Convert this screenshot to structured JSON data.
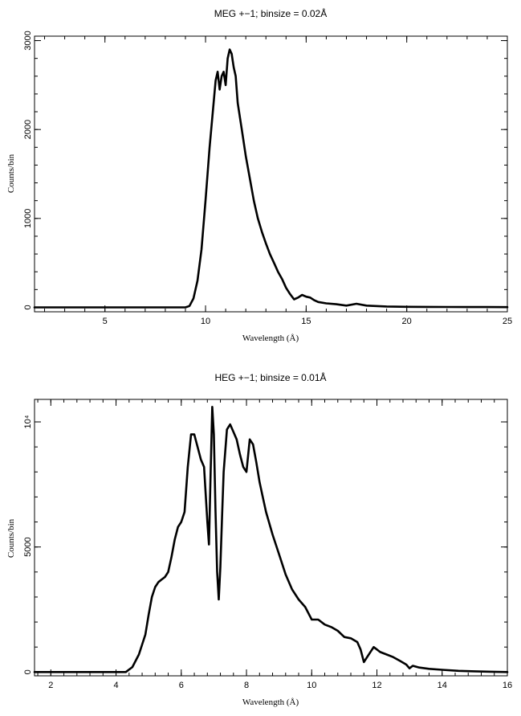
{
  "chart_data": [
    {
      "type": "line",
      "title": "MEG +−1; binsize = 0.02Å",
      "xlabel": "Wavelength (Å)",
      "ylabel": "Counts/bin",
      "xlim": [
        1.5,
        25
      ],
      "ylim": [
        -50,
        3050
      ],
      "xticks": [
        5,
        10,
        15,
        20,
        25
      ],
      "xtick_labels": [
        "5",
        "10",
        "15",
        "20",
        "25"
      ],
      "yticks": [
        0,
        1000,
        2000,
        3000
      ],
      "ytick_labels": [
        "0",
        "1000",
        "2000",
        "3000"
      ],
      "grid": false,
      "series": [
        {
          "x": [
            1.5,
            9.0,
            9.2,
            9.4,
            9.6,
            9.8,
            10.0,
            10.2,
            10.4,
            10.5,
            10.6,
            10.7,
            10.8,
            10.9,
            11.0,
            11.1,
            11.2,
            11.3,
            11.4,
            11.5,
            11.6,
            11.8,
            12.0,
            12.2,
            12.4,
            12.6,
            12.8,
            13.0,
            13.2,
            13.4,
            13.6,
            13.8,
            14.0,
            14.2,
            14.4,
            14.6,
            14.8,
            15.0,
            15.2,
            15.4,
            15.6,
            16.0,
            16.5,
            17.0,
            17.5,
            18.0,
            19.0,
            20.0,
            21.0,
            22.0,
            23.0,
            24.0,
            25.0
          ],
          "y": [
            0,
            0,
            15,
            100,
            300,
            650,
            1200,
            1800,
            2300,
            2550,
            2650,
            2450,
            2600,
            2650,
            2500,
            2800,
            2900,
            2850,
            2700,
            2600,
            2300,
            2000,
            1700,
            1450,
            1200,
            1000,
            850,
            720,
            600,
            500,
            400,
            320,
            220,
            150,
            90,
            110,
            140,
            120,
            110,
            80,
            60,
            45,
            35,
            20,
            40,
            20,
            10,
            6,
            5,
            4,
            3,
            3,
            2
          ]
        }
      ]
    },
    {
      "type": "line",
      "title": "HEG +−1; binsize = 0.01Å",
      "xlabel": "Wavelength (Å)",
      "ylabel": "Counts/bin",
      "xlim": [
        1.5,
        16
      ],
      "ylim": [
        -150,
        10900
      ],
      "xticks": [
        2,
        4,
        6,
        8,
        10,
        12,
        14,
        16
      ],
      "xtick_labels": [
        "2",
        "4",
        "6",
        "8",
        "10",
        "12",
        "14",
        "16"
      ],
      "yticks": [
        0,
        5000,
        10000
      ],
      "ytick_labels": [
        "0",
        "5000",
        "10⁴"
      ],
      "grid": false,
      "series": [
        {
          "x": [
            1.5,
            4.3,
            4.5,
            4.7,
            4.9,
            5.0,
            5.1,
            5.2,
            5.3,
            5.4,
            5.5,
            5.6,
            5.7,
            5.8,
            5.9,
            6.0,
            6.1,
            6.2,
            6.3,
            6.4,
            6.5,
            6.6,
            6.7,
            6.8,
            6.85,
            6.9,
            6.95,
            7.0,
            7.05,
            7.1,
            7.15,
            7.2,
            7.25,
            7.3,
            7.4,
            7.5,
            7.6,
            7.7,
            7.8,
            7.9,
            8.0,
            8.1,
            8.2,
            8.3,
            8.4,
            8.5,
            8.6,
            8.8,
            9.0,
            9.2,
            9.4,
            9.6,
            9.8,
            10.0,
            10.2,
            10.4,
            10.6,
            10.8,
            11.0,
            11.2,
            11.4,
            11.5,
            11.6,
            11.7,
            11.9,
            12.1,
            12.3,
            12.5,
            12.7,
            12.9,
            13.0,
            13.1,
            13.3,
            13.6,
            14.0,
            14.5,
            15.0,
            15.5,
            16.0
          ],
          "y": [
            0,
            0,
            200,
            700,
            1500,
            2300,
            3000,
            3400,
            3600,
            3700,
            3800,
            4000,
            4600,
            5300,
            5800,
            6000,
            6400,
            8200,
            9500,
            9500,
            9000,
            8500,
            8200,
            6000,
            5100,
            8000,
            10600,
            9500,
            6500,
            4000,
            2900,
            4200,
            6200,
            8000,
            9700,
            9900,
            9600,
            9300,
            8700,
            8200,
            8000,
            9300,
            9100,
            8400,
            7600,
            7000,
            6400,
            5500,
            4700,
            3900,
            3300,
            2900,
            2600,
            2100,
            2100,
            1900,
            1800,
            1650,
            1400,
            1350,
            1200,
            900,
            400,
            600,
            1000,
            800,
            700,
            600,
            450,
            300,
            150,
            250,
            180,
            130,
            90,
            50,
            30,
            15,
            0
          ]
        }
      ]
    }
  ]
}
